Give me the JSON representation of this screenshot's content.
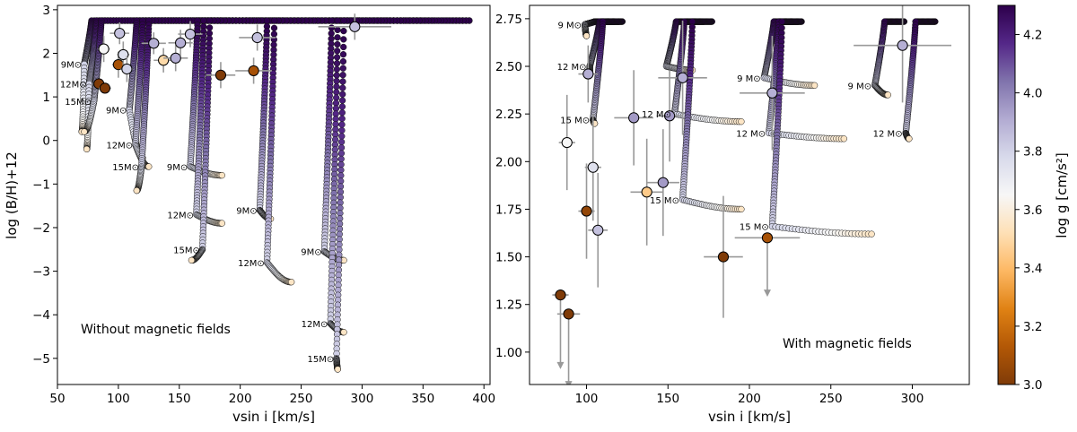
{
  "colorbar": {
    "label": "log g [cm/s²]",
    "min": 3.0,
    "max": 4.3,
    "ticks": [
      3.0,
      3.2,
      3.4,
      3.6,
      3.8,
      4.0,
      4.2
    ],
    "tick_labels": [
      "3.0",
      "3.2",
      "3.4",
      "3.6",
      "3.8",
      "4.0",
      "4.2"
    ],
    "colors": [
      "#7f3b08",
      "#b35806",
      "#e08214",
      "#fdb863",
      "#fee0b6",
      "#f7f7f7",
      "#d8daeb",
      "#b2abd2",
      "#8073ac",
      "#542788",
      "#2d004b"
    ]
  },
  "chart_data": [
    {
      "type": "scatter",
      "panel": "left",
      "annotation": "Without magnetic fields",
      "xlabel": "vsin i [km/s]",
      "ylabel": "log (B/H)+12",
      "xlim": [
        50,
        405
      ],
      "ylim": [
        -5.6,
        3.1
      ],
      "xticks": [
        50,
        100,
        150,
        200,
        250,
        300,
        350,
        400
      ],
      "xtick_labels": [
        "50",
        "100",
        "150",
        "200",
        "250",
        "300",
        "350",
        "400"
      ],
      "yticks": [
        -5,
        -4,
        -3,
        -2,
        -1,
        0,
        1,
        2,
        3
      ],
      "ytick_labels": [
        "−5",
        "−4",
        "−3",
        "−2",
        "−1",
        "0",
        "1",
        "2",
        "3"
      ],
      "tracks": [
        {
          "v0": 78,
          "yStart": 1.75,
          "yEnd": 0.2,
          "vEnd": 70,
          "label": "9M⊙"
        },
        {
          "v0": 82,
          "yStart": 1.3,
          "yEnd": -0.2,
          "vEnd": 74,
          "label": "12M⊙"
        },
        {
          "v0": 86,
          "yStart": 0.9,
          "yEnd": 0.2,
          "vEnd": 72,
          "label": "15M⊙"
        },
        {
          "v0": 115,
          "yStart": 0.7,
          "yEnd": -0.4,
          "vEnd": 120,
          "label": "9M⊙"
        },
        {
          "v0": 120,
          "yStart": -0.1,
          "yEnd": -0.6,
          "vEnd": 125,
          "label": "12M⊙"
        },
        {
          "v0": 125,
          "yStart": -0.6,
          "yEnd": -1.15,
          "vEnd": 115,
          "label": "15M⊙"
        },
        {
          "v0": 165,
          "yStart": -0.6,
          "yEnd": -0.8,
          "vEnd": 185,
          "label": "9M⊙"
        },
        {
          "v0": 170,
          "yStart": -1.7,
          "yEnd": -1.9,
          "vEnd": 185,
          "label": "12M⊙"
        },
        {
          "v0": 175,
          "yStart": -2.5,
          "yEnd": -2.75,
          "vEnd": 160,
          "label": "15M⊙"
        },
        {
          "v0": 222,
          "yStart": -1.6,
          "yEnd": -1.8,
          "vEnd": 225,
          "label": "9M⊙"
        },
        {
          "v0": 228,
          "yStart": -2.8,
          "yEnd": -3.25,
          "vEnd": 242,
          "label": "12M⊙"
        },
        {
          "v0": 275,
          "yStart": -2.55,
          "yEnd": -2.75,
          "vEnd": 285,
          "label": "9M⊙"
        },
        {
          "v0": 280,
          "yStart": -4.2,
          "yEnd": -4.4,
          "vEnd": 285,
          "label": "12M⊙"
        },
        {
          "v0": 285,
          "yStart": -5.0,
          "yEnd": -5.25,
          "vEnd": 280,
          "label": "15M⊙"
        }
      ],
      "stars": [
        {
          "x": 84,
          "y": 1.3,
          "logg": 3.0,
          "xerr": 5,
          "yerr": 0.0
        },
        {
          "x": 89,
          "y": 1.2,
          "logg": 3.0,
          "xerr": 5,
          "yerr": 0.0
        },
        {
          "x": 100,
          "y": 1.74,
          "logg": 3.1,
          "xerr": 5,
          "yerr": 0.3
        },
        {
          "x": 88,
          "y": 2.1,
          "logg": 3.65,
          "xerr": 5,
          "yerr": 0.3
        },
        {
          "x": 104,
          "y": 1.97,
          "logg": 3.75,
          "xerr": 5,
          "yerr": 0.3
        },
        {
          "x": 107,
          "y": 1.64,
          "logg": 3.8,
          "xerr": 5,
          "yerr": 0.3
        },
        {
          "x": 101,
          "y": 2.46,
          "logg": 3.85,
          "xerr": 8,
          "yerr": 0.25
        },
        {
          "x": 129,
          "y": 2.23,
          "logg": 3.9,
          "xerr": 10,
          "yerr": 0.25
        },
        {
          "x": 137,
          "y": 1.84,
          "logg": 3.5,
          "xerr": 8,
          "yerr": 0.28
        },
        {
          "x": 147,
          "y": 1.89,
          "logg": 3.9,
          "xerr": 10,
          "yerr": 0.3
        },
        {
          "x": 151,
          "y": 2.24,
          "logg": 3.9,
          "xerr": 10,
          "yerr": 0.3
        },
        {
          "x": 159,
          "y": 2.44,
          "logg": 3.85,
          "xerr": 10,
          "yerr": 0.3
        },
        {
          "x": 184,
          "y": 1.5,
          "logg": 3.0,
          "xerr": 12,
          "yerr": 0.3
        },
        {
          "x": 211,
          "y": 1.6,
          "logg": 3.1,
          "xerr": 15,
          "yerr": 0.3
        },
        {
          "x": 214,
          "y": 2.36,
          "logg": 3.85,
          "xerr": 15,
          "yerr": 0.3
        },
        {
          "x": 294,
          "y": 2.61,
          "logg": 3.85,
          "xerr": 30,
          "yerr": 0.3
        }
      ]
    },
    {
      "type": "scatter",
      "panel": "right",
      "annotation": "With magnetic fields",
      "xlabel": "vsin i [km/s]",
      "ylabel": "",
      "xlim": [
        65,
        335
      ],
      "ylim": [
        0.83,
        2.82
      ],
      "xticks": [
        100,
        150,
        200,
        250,
        300
      ],
      "xtick_labels": [
        "100",
        "150",
        "200",
        "250",
        "300"
      ],
      "yticks": [
        1.0,
        1.25,
        1.5,
        1.75,
        2.0,
        2.25,
        2.5,
        2.75
      ],
      "ytick_labels": [
        "1.00",
        "1.25",
        "1.50",
        "1.75",
        "2.00",
        "2.25",
        "2.50",
        "2.75"
      ],
      "tracks": [
        {
          "v0": 105,
          "yStart": 2.72,
          "yEnd": 2.66,
          "vEnd": 100,
          "label": "9 M⊙"
        },
        {
          "v0": 108,
          "yStart": 2.5,
          "yEnd": 2.46,
          "vEnd": 102,
          "label": "12 M⊙"
        },
        {
          "v0": 110,
          "yStart": 2.22,
          "yEnd": 2.2,
          "vEnd": 105,
          "label": "15 M⊙"
        },
        {
          "v0": 155,
          "yStart": 2.5,
          "yEnd": 2.48,
          "vEnd": 165,
          "label": ""
        },
        {
          "v0": 160,
          "yStart": 2.25,
          "yEnd": 2.21,
          "vEnd": 195,
          "label": "12 M⊙"
        },
        {
          "v0": 165,
          "yStart": 1.8,
          "yEnd": 1.75,
          "vEnd": 195,
          "label": "15 M⊙"
        },
        {
          "v0": 215,
          "yStart": 2.44,
          "yEnd": 2.4,
          "vEnd": 240,
          "label": "9 M⊙"
        },
        {
          "v0": 218,
          "yStart": 2.15,
          "yEnd": 2.12,
          "vEnd": 258,
          "label": "12 M⊙"
        },
        {
          "v0": 220,
          "yStart": 1.66,
          "yEnd": 1.62,
          "vEnd": 275,
          "label": "15 M⊙"
        },
        {
          "v0": 283,
          "yStart": 2.4,
          "yEnd": 2.35,
          "vEnd": 285,
          "label": "9 M⊙"
        },
        {
          "v0": 302,
          "yStart": 2.15,
          "yEnd": 2.12,
          "vEnd": 298,
          "label": "12 M⊙"
        }
      ],
      "stars": [
        {
          "x": 84,
          "y": 1.3,
          "logg": 3.0,
          "xerr": 5,
          "yerr_down": 0.38,
          "yerr_up": 0.0
        },
        {
          "x": 89,
          "y": 1.2,
          "logg": 3.0,
          "xerr": 7,
          "yerr_down": 0.38,
          "yerr_up": 0.0
        },
        {
          "x": 100,
          "y": 1.74,
          "logg": 3.05,
          "xerr": 5,
          "yerr_down": 0.25,
          "yerr_up": 0.25
        },
        {
          "x": 88,
          "y": 2.1,
          "logg": 3.65,
          "xerr": 5,
          "yerr_down": 0.25,
          "yerr_up": 0.25
        },
        {
          "x": 104,
          "y": 1.97,
          "logg": 3.75,
          "xerr": 5,
          "yerr_down": 0.28,
          "yerr_up": 0.28
        },
        {
          "x": 107,
          "y": 1.64,
          "logg": 3.85,
          "xerr": 6,
          "yerr_down": 0.3,
          "yerr_up": 0.3
        },
        {
          "x": 101,
          "y": 2.46,
          "logg": 3.9,
          "xerr": 6,
          "yerr_down": 0.15,
          "yerr_up": 0.15
        },
        {
          "x": 129,
          "y": 2.23,
          "logg": 3.95,
          "xerr": 12,
          "yerr_down": 0.25,
          "yerr_up": 0.25
        },
        {
          "x": 137,
          "y": 1.84,
          "logg": 3.45,
          "xerr": 10,
          "yerr_down": 0.28,
          "yerr_up": 0.28
        },
        {
          "x": 147,
          "y": 1.89,
          "logg": 3.95,
          "xerr": 10,
          "yerr_down": 0.28,
          "yerr_up": 0.28
        },
        {
          "x": 151,
          "y": 2.24,
          "logg": 3.95,
          "xerr": 8,
          "yerr_down": 0.24,
          "yerr_up": 0.24
        },
        {
          "x": 159,
          "y": 2.44,
          "logg": 3.9,
          "xerr": 15,
          "yerr_down": 0.3,
          "yerr_up": 0.3
        },
        {
          "x": 184,
          "y": 1.5,
          "logg": 3.0,
          "xerr": 12,
          "yerr_down": 0.32,
          "yerr_up": 0.32
        },
        {
          "x": 211,
          "y": 1.6,
          "logg": 3.1,
          "xerr": 20,
          "yerr_down": 0.3,
          "yerr_up": 0.0
        },
        {
          "x": 214,
          "y": 2.36,
          "logg": 3.9,
          "xerr": 20,
          "yerr_down": 0.3,
          "yerr_up": 0.3
        },
        {
          "x": 294,
          "y": 2.61,
          "logg": 3.9,
          "xerr": 30,
          "yerr_down": 0.3,
          "yerr_up": 0.3
        }
      ]
    }
  ]
}
